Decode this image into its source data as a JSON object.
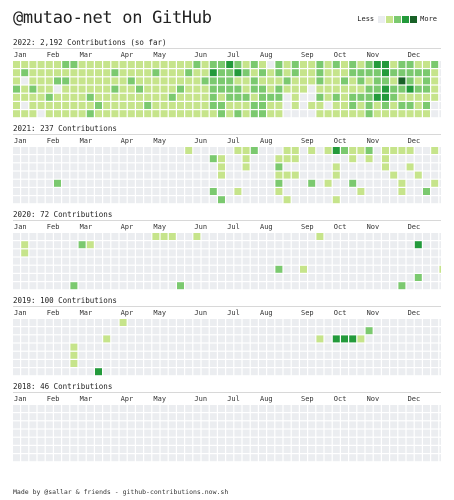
{
  "header": {
    "title": "@mutao-net on GitHub"
  },
  "legend": {
    "less_label": "Less",
    "more_label": "More",
    "colors": [
      "#ebedf0",
      "#c6e48b",
      "#7bc96f",
      "#239a3b",
      "#196127"
    ]
  },
  "years": [
    {
      "title": "2022: 2,192 Contributions (so far)",
      "months": [
        "Jan",
        "Feb",
        "Mar",
        "Apr",
        "May",
        "Jun",
        "Jul",
        "Aug",
        "Sep",
        "Oct",
        "Nov",
        "Dec"
      ],
      "month_weeks": [
        0,
        4,
        8,
        13,
        17,
        22,
        26,
        30,
        35,
        39,
        43,
        48
      ],
      "weeks": [
        "1112111",
        "1201101",
        "1112111",
        "1111110",
        "1111211",
        "1120111",
        "2121111",
        "2111111",
        "1111111",
        "1111212",
        "1111121",
        "1111111",
        "1212111",
        "1111111",
        "1121111",
        "1112111",
        "1111121",
        "1211111",
        "1111111",
        "1111211",
        "1112111",
        "1211111",
        "2111111",
        "1121111",
        "2322221",
        "2222122",
        "3222211",
        "2312212",
        "1211211",
        "2122122",
        "1212222",
        "0111211",
        "2212211",
        "1121000",
        "2211110",
        "1111000",
        "1110010",
        "2221211",
        "1111101",
        "2111211",
        "1121111",
        "2211221",
        "1221211",
        "2212222",
        "3222311",
        "3323321",
        "1212211",
        "2242121",
        "2223121",
        "1212111",
        "1222121",
        "2111100",
        "0000000"
      ]
    },
    {
      "title": "2021: 237 Contributions",
      "months": [
        "Jan",
        "Feb",
        "Mar",
        "Apr",
        "May",
        "Jun",
        "Jul",
        "Aug",
        "Sep",
        "Oct",
        "Nov",
        "Dec"
      ],
      "month_weeks": [
        0,
        4,
        8,
        13,
        17,
        22,
        26,
        30,
        35,
        39,
        43,
        48
      ],
      "weeks": [
        "0000000",
        "0000000",
        "0000000",
        "0000000",
        "0000000",
        "0000200",
        "0000000",
        "0000000",
        "0000000",
        "0000000",
        "0000000",
        "0000000",
        "0000000",
        "0000000",
        "0000000",
        "0000000",
        "0000000",
        "0000000",
        "0000000",
        "0000000",
        "0000000",
        "1000000",
        "0000000",
        "0000000",
        "0200020",
        "0111002",
        "0000000",
        "1000010",
        "1110000",
        "2000000",
        "0000000",
        "0000000",
        "0121210",
        "1101001",
        "1101000",
        "0000000",
        "1000200",
        "0000000",
        "1000100",
        "3011001",
        "2000000",
        "1100200",
        "1000010",
        "2100000",
        "0000000",
        "1110000",
        "1001000",
        "1000110",
        "1010000",
        "0001000",
        "0000020",
        "1000100",
        "0000000"
      ]
    },
    {
      "title": "2020: 72 Contributions",
      "months": [
        "Jan",
        "Feb",
        "Mar",
        "Apr",
        "May",
        "Jun",
        "Jul",
        "Aug",
        "Sep",
        "Oct",
        "Nov",
        "Dec"
      ],
      "month_weeks": [
        0,
        4,
        8,
        13,
        17,
        22,
        26,
        30,
        35,
        39,
        43,
        48
      ],
      "weeks": [
        "0000000",
        "0110000",
        "0000000",
        "0000000",
        "0000000",
        "0000000",
        "0000000",
        "0000002",
        "0200000",
        "0100000",
        "0000000",
        "0000000",
        "0000000",
        "0000000",
        "0000000",
        "0000000",
        "0000000",
        "1000000",
        "1000000",
        "1000000",
        "0000002",
        "0000000",
        "1000000",
        "0000000",
        "0000000",
        "0000000",
        "0000000",
        "0000000",
        "0000000",
        "0000000",
        "0000000",
        "0000000",
        "0000200",
        "0000000",
        "0000000",
        "0000100",
        "0000000",
        "1000000",
        "0000000",
        "0000000",
        "0000000",
        "0000000",
        "0000000",
        "0000000",
        "0000000",
        "0000000",
        "0000000",
        "0000002",
        "0000000",
        "0300020",
        "0000000",
        "0000000",
        "0000100"
      ]
    },
    {
      "title": "2019: 100 Contributions",
      "months": [
        "Jan",
        "Feb",
        "Mar",
        "Apr",
        "May",
        "Jun",
        "Jul",
        "Aug",
        "Sep",
        "Oct",
        "Nov",
        "Dec"
      ],
      "month_weeks": [
        0,
        4,
        8,
        13,
        17,
        22,
        26,
        30,
        35,
        39,
        43,
        48
      ],
      "weeks": [
        "0000000",
        "0000000",
        "0000000",
        "0000000",
        "0000000",
        "0000000",
        "0000000",
        "0001110",
        "0000000",
        "0000000",
        "0000003",
        "0010000",
        "0000000",
        "1000000",
        "0000000",
        "0000000",
        "0000000",
        "0000000",
        "0000000",
        "0000000",
        "0000000",
        "0000000",
        "0000000",
        "0000000",
        "0000000",
        "0000000",
        "0000000",
        "0000000",
        "0000000",
        "0000000",
        "0000000",
        "0000000",
        "0000000",
        "0000000",
        "0000000",
        "0000000",
        "0000000",
        "0010000",
        "0000000",
        "0030000",
        "0030000",
        "0030000",
        "0010000",
        "0200000",
        "0000000",
        "0000000",
        "0000000",
        "0000000",
        "0000000",
        "0000000",
        "0000000",
        "0000000",
        "0000000"
      ]
    },
    {
      "title": "2018: 46 Contributions",
      "months": [
        "Jan",
        "Feb",
        "Mar",
        "Apr",
        "May",
        "Jun",
        "Jul",
        "Aug",
        "Sep",
        "Oct",
        "Nov",
        "Dec"
      ],
      "month_weeks": [
        0,
        4,
        8,
        13,
        17,
        22,
        26,
        30,
        35,
        39,
        43,
        48
      ],
      "weeks": [
        "0000000",
        "0000000",
        "0000000",
        "0000000",
        "0000000",
        "0000000",
        "0000000",
        "0000000",
        "0000000",
        "0000000",
        "0000000",
        "0000000",
        "0000000",
        "0000000",
        "0000000",
        "0000000",
        "0000000",
        "0000000",
        "0000000",
        "0000000",
        "0000000",
        "0000000",
        "0000000",
        "0000000",
        "0000000",
        "0000000",
        "0000000",
        "0000000",
        "0000000",
        "0000000",
        "0000000",
        "0000000",
        "0000000",
        "0000000",
        "0000000",
        "0000000",
        "0000000",
        "0000000",
        "0000000",
        "0000000",
        "0000000",
        "0000000",
        "0000000",
        "0000000",
        "0000000",
        "0000000",
        "0000000",
        "0000000",
        "0000000",
        "0000000",
        "0000000",
        "0000000",
        "0000000"
      ]
    }
  ],
  "footer": {
    "text": "Made by @sallar & friends - github-contributions.now.sh"
  }
}
